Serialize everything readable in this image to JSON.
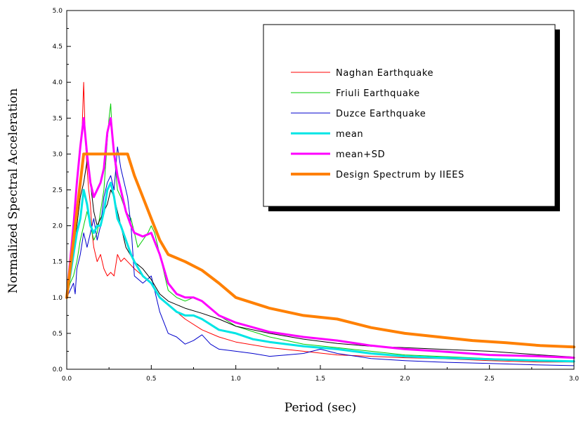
{
  "chart_data": {
    "type": "line",
    "xlabel": "Period (sec)",
    "ylabel": "Normalized Spectral Acceleration",
    "xlim": [
      0,
      3.0
    ],
    "ylim": [
      0,
      5.0
    ],
    "x_ticks": [
      "0.0",
      "0.5",
      "1.0",
      "1.5",
      "2.0",
      "2.5",
      "3.0"
    ],
    "y_ticks": [
      "0.0",
      "0.5",
      "1.0",
      "1.5",
      "2.0",
      "2.5",
      "3.0",
      "3.5",
      "4.0",
      "4.5",
      "5.0"
    ],
    "grid": false,
    "legend_position": "top-right",
    "series": [
      {
        "name": "Naghan Earthquake",
        "color": "#ff0000",
        "width": 1,
        "x": [
          0.0,
          0.02,
          0.04,
          0.05,
          0.06,
          0.07,
          0.08,
          0.09,
          0.1,
          0.11,
          0.12,
          0.13,
          0.14,
          0.15,
          0.16,
          0.18,
          0.2,
          0.22,
          0.24,
          0.26,
          0.28,
          0.3,
          0.32,
          0.34,
          0.36,
          0.38,
          0.4,
          0.45,
          0.5,
          0.55,
          0.6,
          0.7,
          0.8,
          0.9,
          1.0,
          1.2,
          1.4,
          1.6,
          1.8,
          2.0,
          2.2,
          2.5,
          2.8,
          3.0
        ],
        "values": [
          1.0,
          1.3,
          1.6,
          2.3,
          2.6,
          2.9,
          3.1,
          3.3,
          4.0,
          3.2,
          2.8,
          2.5,
          2.3,
          1.9,
          1.7,
          1.5,
          1.6,
          1.4,
          1.3,
          1.35,
          1.3,
          1.6,
          1.5,
          1.55,
          1.5,
          1.45,
          1.4,
          1.3,
          1.2,
          1.0,
          0.9,
          0.7,
          0.55,
          0.45,
          0.38,
          0.3,
          0.25,
          0.2,
          0.18,
          0.16,
          0.15,
          0.12,
          0.1,
          0.1
        ]
      },
      {
        "name": "Friuli Earthquake",
        "color": "#00cc00",
        "width": 1,
        "x": [
          0.0,
          0.02,
          0.04,
          0.06,
          0.08,
          0.1,
          0.12,
          0.14,
          0.16,
          0.18,
          0.2,
          0.22,
          0.24,
          0.25,
          0.26,
          0.27,
          0.28,
          0.3,
          0.32,
          0.35,
          0.38,
          0.4,
          0.42,
          0.45,
          0.48,
          0.5,
          0.52,
          0.55,
          0.6,
          0.65,
          0.7,
          0.75,
          0.8,
          0.9,
          1.0,
          1.2,
          1.4,
          1.6,
          1.8,
          2.0,
          2.2,
          2.5,
          2.8,
          3.0
        ],
        "values": [
          1.0,
          1.2,
          1.3,
          1.5,
          1.8,
          2.0,
          2.2,
          2.0,
          1.8,
          1.9,
          2.2,
          2.5,
          3.2,
          3.5,
          3.7,
          3.2,
          3.0,
          2.5,
          2.4,
          2.2,
          2.1,
          1.9,
          1.7,
          1.8,
          1.9,
          2.0,
          1.9,
          1.6,
          1.1,
          1.0,
          0.95,
          1.0,
          0.95,
          0.75,
          0.6,
          0.45,
          0.35,
          0.3,
          0.25,
          0.2,
          0.18,
          0.15,
          0.12,
          0.1
        ]
      },
      {
        "name": "Duzce Earthquake",
        "color": "#0000cc",
        "width": 1,
        "x": [
          0.0,
          0.02,
          0.04,
          0.05,
          0.06,
          0.08,
          0.1,
          0.12,
          0.14,
          0.16,
          0.18,
          0.2,
          0.22,
          0.24,
          0.26,
          0.28,
          0.3,
          0.32,
          0.34,
          0.36,
          0.38,
          0.4,
          0.45,
          0.5,
          0.55,
          0.6,
          0.65,
          0.7,
          0.75,
          0.8,
          0.85,
          0.9,
          1.0,
          1.1,
          1.2,
          1.3,
          1.4,
          1.5,
          1.6,
          1.8,
          2.0,
          2.2,
          2.5,
          2.8,
          3.0
        ],
        "values": [
          1.0,
          1.1,
          1.2,
          1.05,
          1.4,
          1.6,
          1.9,
          1.7,
          1.9,
          2.1,
          1.8,
          2.0,
          2.4,
          2.6,
          2.7,
          2.5,
          3.1,
          2.8,
          2.6,
          2.4,
          2.0,
          1.3,
          1.2,
          1.3,
          0.8,
          0.5,
          0.45,
          0.35,
          0.4,
          0.48,
          0.35,
          0.28,
          0.25,
          0.22,
          0.18,
          0.2,
          0.22,
          0.28,
          0.22,
          0.15,
          0.12,
          0.1,
          0.08,
          0.06,
          0.05
        ]
      },
      {
        "name": "",
        "color": "#000000",
        "width": 1,
        "x": [
          0.0,
          0.04,
          0.06,
          0.08,
          0.1,
          0.12,
          0.14,
          0.16,
          0.18,
          0.2,
          0.22,
          0.24,
          0.26,
          0.28,
          0.3,
          0.32,
          0.35,
          0.4,
          0.45,
          0.5,
          0.55,
          0.6,
          0.7,
          0.8,
          0.9,
          1.0,
          1.2,
          1.4,
          1.6,
          1.8,
          2.0,
          2.2,
          2.5,
          2.8,
          3.0
        ],
        "values": [
          1.0,
          1.6,
          2.0,
          2.4,
          2.6,
          2.9,
          2.6,
          2.2,
          2.0,
          2.1,
          2.2,
          2.3,
          2.5,
          2.4,
          2.2,
          2.0,
          1.7,
          1.5,
          1.4,
          1.25,
          1.05,
          0.95,
          0.85,
          0.78,
          0.7,
          0.6,
          0.5,
          0.42,
          0.36,
          0.32,
          0.3,
          0.28,
          0.25,
          0.2,
          0.17
        ]
      },
      {
        "name": "mean",
        "color": "#00e5e5",
        "width": 3,
        "x": [
          0.0,
          0.02,
          0.04,
          0.06,
          0.08,
          0.1,
          0.12,
          0.14,
          0.16,
          0.18,
          0.2,
          0.22,
          0.24,
          0.26,
          0.28,
          0.3,
          0.32,
          0.35,
          0.38,
          0.4,
          0.45,
          0.5,
          0.55,
          0.6,
          0.65,
          0.7,
          0.75,
          0.8,
          0.9,
          1.0,
          1.1,
          1.2,
          1.4,
          1.6,
          1.8,
          2.0,
          2.2,
          2.5,
          2.8,
          3.0
        ],
        "values": [
          1.0,
          1.3,
          1.6,
          1.9,
          2.1,
          2.5,
          2.3,
          2.0,
          1.9,
          2.0,
          2.0,
          2.2,
          2.5,
          2.6,
          2.4,
          2.1,
          2.0,
          1.8,
          1.6,
          1.5,
          1.3,
          1.2,
          1.0,
          0.9,
          0.8,
          0.75,
          0.75,
          0.7,
          0.55,
          0.5,
          0.42,
          0.38,
          0.32,
          0.28,
          0.22,
          0.18,
          0.16,
          0.14,
          0.12,
          0.11
        ]
      },
      {
        "name": "mean+SD",
        "color": "#ff00ff",
        "width": 3,
        "x": [
          0.0,
          0.02,
          0.04,
          0.06,
          0.08,
          0.1,
          0.12,
          0.14,
          0.16,
          0.18,
          0.2,
          0.22,
          0.24,
          0.26,
          0.28,
          0.3,
          0.32,
          0.35,
          0.38,
          0.4,
          0.45,
          0.5,
          0.55,
          0.6,
          0.65,
          0.7,
          0.75,
          0.8,
          0.9,
          1.0,
          1.2,
          1.4,
          1.6,
          1.8,
          2.0,
          2.2,
          2.5,
          2.8,
          3.0
        ],
        "values": [
          1.0,
          1.5,
          2.0,
          2.6,
          3.1,
          3.5,
          3.0,
          2.6,
          2.4,
          2.5,
          2.6,
          2.8,
          3.3,
          3.5,
          3.0,
          2.7,
          2.5,
          2.2,
          2.0,
          1.9,
          1.85,
          1.9,
          1.6,
          1.2,
          1.05,
          1.0,
          1.0,
          0.95,
          0.75,
          0.65,
          0.52,
          0.45,
          0.4,
          0.33,
          0.28,
          0.25,
          0.2,
          0.18,
          0.16
        ]
      },
      {
        "name": "Design Spectrum by IIEES",
        "color": "#ff8000",
        "width": 4,
        "x": [
          0.0,
          0.1,
          0.2,
          0.3,
          0.36,
          0.4,
          0.45,
          0.5,
          0.55,
          0.6,
          0.7,
          0.8,
          0.9,
          1.0,
          1.2,
          1.4,
          1.6,
          1.8,
          2.0,
          2.2,
          2.4,
          2.6,
          2.8,
          3.0
        ],
        "values": [
          1.0,
          3.0,
          3.0,
          3.0,
          3.0,
          2.7,
          2.4,
          2.1,
          1.8,
          1.6,
          1.5,
          1.38,
          1.2,
          1.0,
          0.85,
          0.75,
          0.7,
          0.58,
          0.5,
          0.45,
          0.4,
          0.37,
          0.33,
          0.31
        ]
      }
    ]
  }
}
